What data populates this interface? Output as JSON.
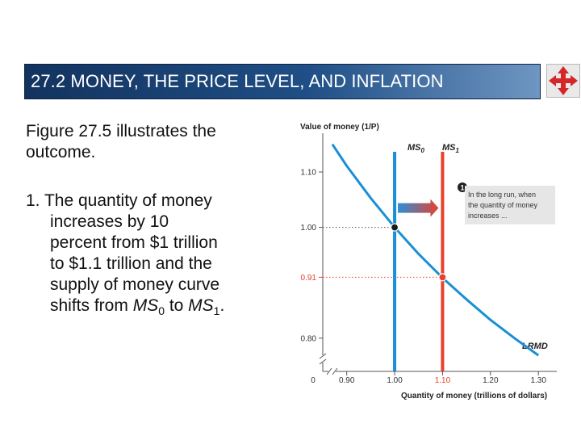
{
  "header": {
    "title": "27.2  MONEY, THE PRICE LEVEL, AND INFLATION",
    "nav_icon": "four-way-arrows-icon"
  },
  "text": {
    "paragraph1": "Figure 27.5 illustrates the outcome.",
    "paragraph2": {
      "number": "1.",
      "first_line": " The quantity of money",
      "lines": [
        "increases by 10",
        "percent from $1 trillion",
        "to $1.1 trillion and the",
        "supply of money curve"
      ],
      "last_prefix": "shifts from ",
      "ms": "MS",
      "sub0": "0",
      "mid": " to ",
      "sub1": "1",
      "end": "."
    }
  },
  "chart_data": {
    "type": "line",
    "title": "",
    "ylabel": "Value of money (1/P)",
    "xlabel": "Quantity of money (trillions of dollars)",
    "x_ticks": [
      "0",
      "0.90",
      "1.00",
      "1.10",
      "1.20",
      "1.30"
    ],
    "y_ticks": [
      "0.80",
      "0.91",
      "1.00",
      "1.10"
    ],
    "xlim": [
      0.85,
      1.33
    ],
    "ylim": [
      0.74,
      1.17
    ],
    "axis_breaks": true,
    "series": [
      {
        "name": "MS0",
        "sub": "0",
        "kind": "vertical",
        "x": 1.0,
        "color": "#1a8fd6"
      },
      {
        "name": "MS1",
        "sub": "1",
        "kind": "vertical",
        "x": 1.1,
        "color": "#e8412c"
      },
      {
        "name": "LRMD",
        "kind": "curve",
        "color": "#1a8fd6",
        "points": [
          [
            0.87,
            1.15
          ],
          [
            0.9,
            1.111
          ],
          [
            0.95,
            1.053
          ],
          [
            1.0,
            1.0
          ],
          [
            1.05,
            0.952
          ],
          [
            1.1,
            0.909
          ],
          [
            1.15,
            0.87
          ],
          [
            1.2,
            0.833
          ],
          [
            1.25,
            0.8
          ],
          [
            1.3,
            0.769
          ]
        ]
      }
    ],
    "equilibria": [
      {
        "x": 1.0,
        "y": 1.0,
        "color": "#1a1a1a"
      },
      {
        "x": 1.1,
        "y": 0.91,
        "color": "#e8412c"
      }
    ],
    "highlight_tick": "0.91",
    "highlight_color": "#e8412c",
    "shift_arrow": {
      "from": 1.0,
      "to": 1.1,
      "y": 1.035
    },
    "callout": {
      "number": "1",
      "lines": [
        "In the long run, when",
        "the quantity of money",
        "increases ..."
      ]
    }
  }
}
